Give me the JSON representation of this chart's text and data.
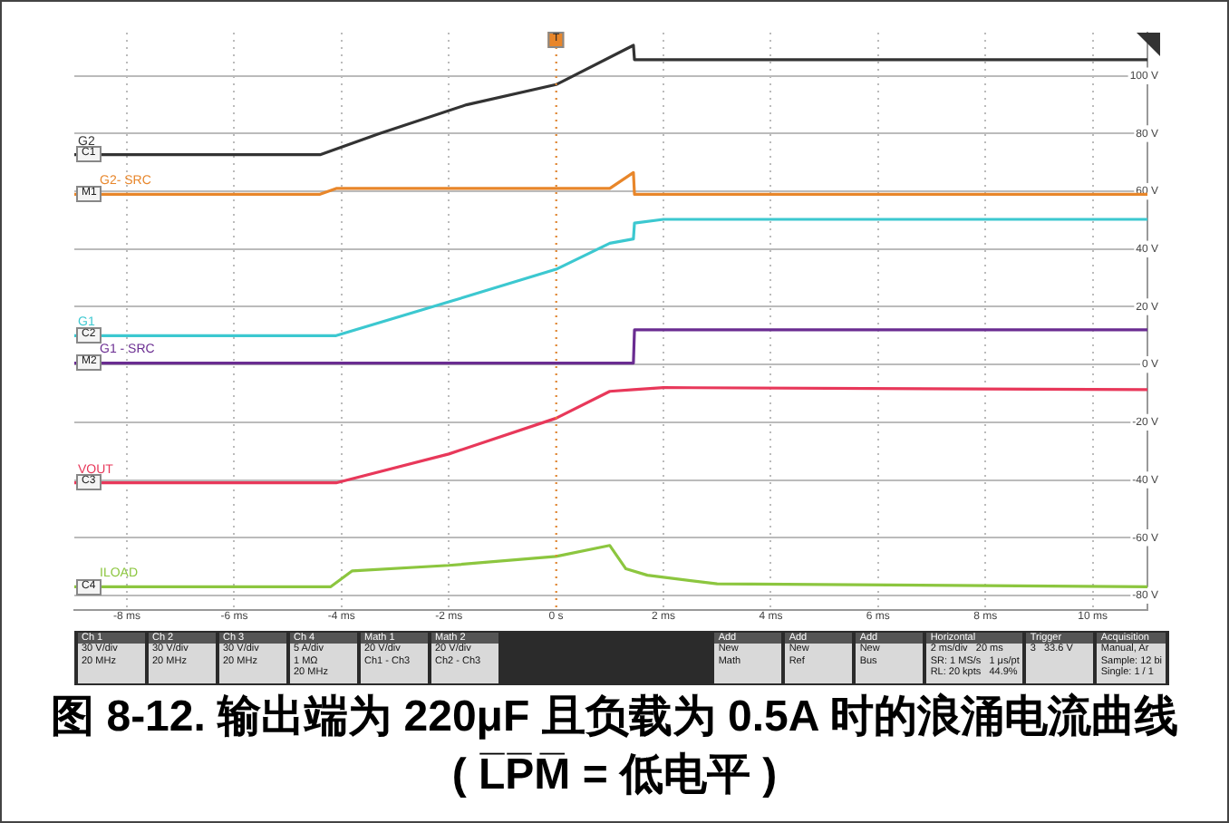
{
  "chart_data": {
    "type": "line",
    "title": "图 8-12. 输出端为 220μF 且负载为 0.5A 时的浪涌电流曲线 ( L̅P̅M̅ = 低电平 )",
    "xlim": [
      -8.98,
      11.02
    ],
    "xticks": [
      {
        "value": -8,
        "label": "-8 ms"
      },
      {
        "value": -6,
        "label": "-6 ms"
      },
      {
        "value": -4,
        "label": "-4 ms"
      },
      {
        "value": -2,
        "label": "-2 ms"
      },
      {
        "value": 0,
        "label": "0 s"
      },
      {
        "value": 2,
        "label": "2 ms"
      },
      {
        "value": 4,
        "label": "4 ms"
      },
      {
        "value": 6,
        "label": "6 ms"
      },
      {
        "value": 8,
        "label": "8 ms"
      },
      {
        "value": 10,
        "label": "10 ms"
      }
    ],
    "ylim": [
      -85,
      115
    ],
    "yticks": [
      {
        "value": -80,
        "label": "-80 V"
      },
      {
        "value": -60,
        "label": "-60 V"
      },
      {
        "value": -40,
        "label": "-40 V"
      },
      {
        "value": -20,
        "label": "-20 V"
      },
      {
        "value": 0,
        "label": "0 V"
      },
      {
        "value": 20,
        "label": "20 V"
      },
      {
        "value": 40,
        "label": "40 V"
      },
      {
        "value": 60,
        "label": "60 V"
      },
      {
        "value": 80,
        "label": "80 V"
      },
      {
        "value": 100,
        "label": "100 V"
      }
    ],
    "grid": true,
    "series": [
      {
        "name": "G2",
        "color": "#333333",
        "x": [
          -8.98,
          -4.4,
          -3.3,
          -1.67,
          0,
          1.44,
          1.46,
          11.02
        ],
        "values": [
          72.7,
          72.7,
          80,
          90,
          97,
          110.6,
          105.6,
          105.6
        ]
      },
      {
        "name": "G2- SRC",
        "color": "#e8862a",
        "x": [
          -8.98,
          -4.4,
          -4.1,
          1.0,
          1.44,
          1.46,
          11.02
        ],
        "values": [
          59,
          59,
          61,
          61,
          66.5,
          59,
          59
        ]
      },
      {
        "name": "G1",
        "color": "#3cc8d0",
        "x": [
          -8.98,
          -4.1,
          -2,
          0,
          1.0,
          1.44,
          1.46,
          2,
          11.02
        ],
        "values": [
          10,
          10,
          21.7,
          33,
          42,
          43.5,
          49,
          50.3,
          50.3
        ]
      },
      {
        "name": "G1 - SRC",
        "color": "#6a2c91",
        "x": [
          -8.98,
          1.44,
          1.46,
          11.02
        ],
        "values": [
          0.5,
          0.5,
          12,
          12
        ]
      },
      {
        "name": "VOUT",
        "color": "#e8385a",
        "x": [
          -8.98,
          -4.1,
          -2,
          0,
          1.0,
          1.44,
          2,
          11.02
        ],
        "values": [
          -41,
          -41,
          -31,
          -18.6,
          -9.3,
          -8.7,
          -8,
          -8.7
        ]
      },
      {
        "name": "ILOAD",
        "color": "#8cc63f",
        "x": [
          -8.98,
          -4.2,
          -3.8,
          -2,
          0,
          1.0,
          1.3,
          1.7,
          3,
          11.02
        ],
        "values": [
          -77,
          -77,
          -71.5,
          -69.6,
          -66.5,
          -62.7,
          -70.8,
          -73,
          -76,
          -77
        ]
      }
    ],
    "ref_lines": [
      {
        "axis": "x",
        "value": 0,
        "label": "T",
        "color": "#e8862a",
        "line_style": "dotted"
      }
    ],
    "annotations": [
      "C1",
      "M1",
      "C2",
      "M2",
      "C3",
      "C4",
      "Ch 1\n30 V/div\n20 MHz",
      "Ch 2\n30 V/div\n20 MHz",
      "Ch 3\n30 V/div\n20 MHz",
      "Ch 4\n5 A/div\n1 MΩ\n20 MHz",
      "Math 1\n20 V/div\nCh1 - Ch3",
      "Math 2\n20 V/div\nCh2 - Ch3",
      "Add\nNew\nMath",
      "Add\nNew\nRef",
      "Add\nNew\nBus",
      "Horizontal\n2 ms/div   20 ms\nSR: 1 MS/s   1 μs/pt\nRL: 20 kpts   44.9%",
      "Trigger\n3   33.6 V",
      "Acquisition\nManual, Ar\nSample: 12 bi\nSingle: 1 / 1"
    ]
  }
}
